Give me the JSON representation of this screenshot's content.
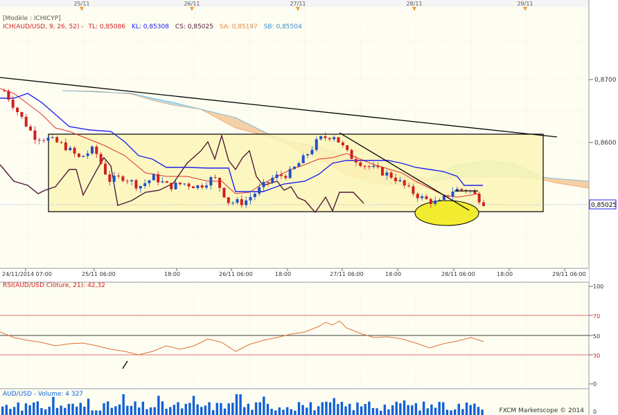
{
  "top_dates": [
    "25/11",
    "26/11",
    "27/11",
    "28/11",
    "29/11"
  ],
  "header": {
    "model": "[Modèle : ICHICYP]",
    "ich_label": "ICH(AUD/USD, 9, 26, 52) -",
    "tl": "TL: 0,85086",
    "kl": "KL: 0,85308",
    "cs": "CS: 0,85025",
    "sa": "SA: 0,85197",
    "sb": "SB: 0,85504"
  },
  "price_axis": {
    "labels": [
      "0,8700",
      "0,8600"
    ],
    "current": "0,85025"
  },
  "time_axis": [
    "24/11/2014 07:00",
    "25/11 06:00",
    "18:00",
    "26/11 06:00",
    "18:00",
    "27/11 06:00",
    "18:00",
    "28/11 06:00",
    "18:00",
    "29/11 06:00"
  ],
  "rsi": {
    "title": "RSI(AUD/USD Clôture, 21): 42,32",
    "levels": [
      "100",
      "70",
      "50",
      "30",
      "0"
    ]
  },
  "volume": {
    "title": "AUD/USD - Volume: 4 327",
    "axis_label": "0"
  },
  "footer": "FXCM Marketscope © 2014",
  "colors": {
    "background": "#fdfdf2",
    "tenkan": "#e03030",
    "kijun": "#2020ee",
    "chikou": "#501838",
    "senkou_a": "#f0a060",
    "senkou_b": "#60b0e0",
    "bull": "#2050c8",
    "bear": "#d02020",
    "volume": "#1060d8",
    "rsi_line": "#e07030",
    "box_fill": "#fbf6b8",
    "ellipse": "#f2ec30"
  },
  "chart_data": [
    {
      "type": "candlestick",
      "x_axis_labels": [
        "24/11/2014 07:00",
        "25/11 06:00",
        "18:00",
        "26/11 06:00",
        "18:00",
        "27/11 06:00",
        "18:00",
        "28/11 06:00",
        "18:00",
        "29/11 06:00"
      ],
      "y_axis_labels": [
        "0,8700",
        "0,8600"
      ],
      "indicator": "ICH(AUD/USD, 9, 26, 52)",
      "values": {
        "TL": 0.85086,
        "KL": 0.85308,
        "CS": 0.85025,
        "SA": 0.85197,
        "SB": 0.85504
      },
      "last_price": 0.85025,
      "close_path": [
        0.8682,
        0.8645,
        0.861,
        0.8605,
        0.8595,
        0.8575,
        0.859,
        0.854,
        0.8545,
        0.853,
        0.8545,
        0.853,
        0.8535,
        0.853,
        0.8545,
        0.8505,
        0.8505,
        0.8525,
        0.8545,
        0.855,
        0.8575,
        0.8605,
        0.8612,
        0.858,
        0.8565,
        0.8555,
        0.8545,
        0.8525,
        0.851,
        0.8503,
        0.8525,
        0.8525,
        0.8505
      ]
    },
    {
      "type": "line",
      "title": "RSI(AUD/USD Clôture, 21): 42,32",
      "y_axis_labels": [
        "100",
        "70",
        "50",
        "30",
        "0"
      ],
      "ylim": [
        0,
        100
      ],
      "levels": [
        70,
        50,
        30
      ],
      "last": 42.32
    },
    {
      "type": "bar",
      "title": "AUD/USD - Volume: 4 327",
      "last": 4327
    }
  ]
}
